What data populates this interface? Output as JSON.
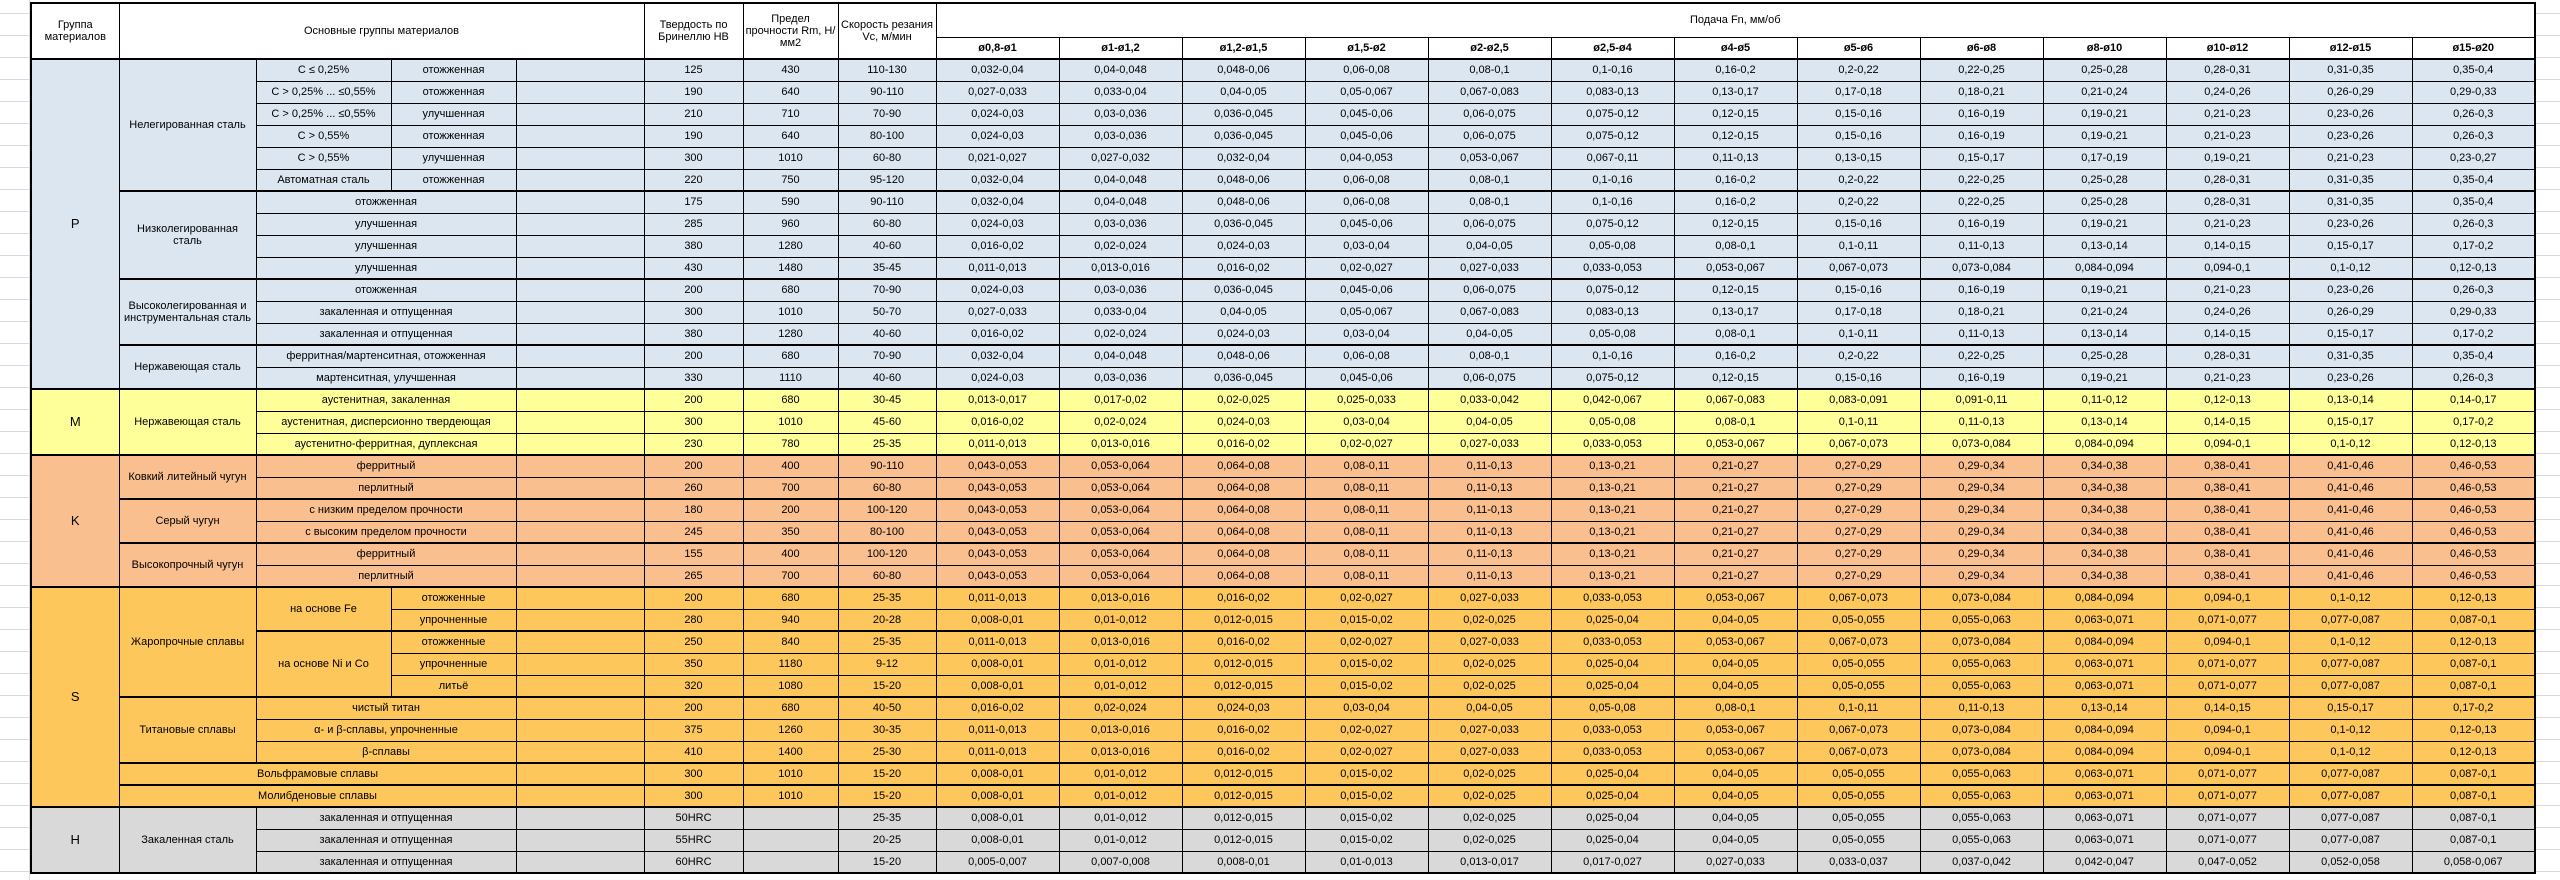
{
  "header": {
    "col_group": "Группа материалов",
    "col_main": "Основные группы материалов",
    "col_hardness": "Твердость по Бринеллю HB",
    "col_strength": "Предел прочности Rm, Н/мм2",
    "col_speed": "Скорость резания Vc, м/мин",
    "col_feed": "Подача Fn, мм/об",
    "diameters": [
      "ø0,8-ø1",
      "ø1-ø1,2",
      "ø1,2-ø1,5",
      "ø1,5-ø2",
      "ø2-ø2,5",
      "ø2,5-ø4",
      "ø4-ø5",
      "ø5-ø6",
      "ø6-ø8",
      "ø8-ø10",
      "ø10-ø12",
      "ø12-ø15",
      "ø15-ø20"
    ]
  },
  "colors": {
    "group_P": "#dce6f1",
    "group_M": "#ffff99",
    "group_K": "#fabf8f",
    "group_S": "#fdc75c",
    "group_H": "#d9d9d9",
    "grid_border": "#000000",
    "gutter_line": "#d6dbe3"
  },
  "table": {
    "feed_patterns": {
      "A": [
        "0,032-0,04",
        "0,04-0,048",
        "0,048-0,06",
        "0,06-0,08",
        "0,08-0,1",
        "0,1-0,16",
        "0,16-0,2",
        "0,2-0,22",
        "0,22-0,25",
        "0,25-0,28",
        "0,28-0,31",
        "0,31-0,35",
        "0,35-0,4"
      ],
      "B": [
        "0,027-0,033",
        "0,033-0,04",
        "0,04-0,05",
        "0,05-0,067",
        "0,067-0,083",
        "0,083-0,13",
        "0,13-0,17",
        "0,17-0,18",
        "0,18-0,21",
        "0,21-0,24",
        "0,24-0,26",
        "0,26-0,29",
        "0,29-0,33"
      ],
      "C": [
        "0,024-0,03",
        "0,03-0,036",
        "0,036-0,045",
        "0,045-0,06",
        "0,06-0,075",
        "0,075-0,12",
        "0,12-0,15",
        "0,15-0,16",
        "0,16-0,19",
        "0,19-0,21",
        "0,21-0,23",
        "0,23-0,26",
        "0,26-0,3"
      ],
      "D": [
        "0,021-0,027",
        "0,027-0,032",
        "0,032-0,04",
        "0,04-0,053",
        "0,053-0,067",
        "0,067-0,11",
        "0,11-0,13",
        "0,13-0,15",
        "0,15-0,17",
        "0,17-0,19",
        "0,19-0,21",
        "0,21-0,23",
        "0,23-0,27"
      ],
      "E": [
        "0,016-0,02",
        "0,02-0,024",
        "0,024-0,03",
        "0,03-0,04",
        "0,04-0,05",
        "0,05-0,08",
        "0,08-0,1",
        "0,1-0,11",
        "0,11-0,13",
        "0,13-0,14",
        "0,14-0,15",
        "0,15-0,17",
        "0,17-0,2"
      ],
      "F": [
        "0,011-0,013",
        "0,013-0,016",
        "0,016-0,02",
        "0,02-0,027",
        "0,027-0,033",
        "0,033-0,053",
        "0,053-0,067",
        "0,067-0,073",
        "0,073-0,084",
        "0,084-0,094",
        "0,094-0,1",
        "0,1-0,12",
        "0,12-0,13"
      ],
      "G": [
        "0,013-0,017",
        "0,017-0,02",
        "0,02-0,025",
        "0,025-0,033",
        "0,033-0,042",
        "0,042-0,067",
        "0,067-0,083",
        "0,083-0,091",
        "0,091-0,11",
        "0,11-0,12",
        "0,12-0,13",
        "0,13-0,14",
        "0,14-0,17"
      ],
      "H": [
        "0,043-0,053",
        "0,053-0,064",
        "0,064-0,08",
        "0,08-0,11",
        "0,11-0,13",
        "0,13-0,21",
        "0,21-0,27",
        "0,27-0,29",
        "0,29-0,34",
        "0,34-0,38",
        "0,38-0,41",
        "0,41-0,46",
        "0,46-0,53"
      ],
      "I": [
        "0,008-0,01",
        "0,01-0,012",
        "0,012-0,015",
        "0,015-0,02",
        "0,02-0,025",
        "0,025-0,04",
        "0,04-0,05",
        "0,05-0,055",
        "0,055-0,063",
        "0,063-0,071",
        "0,071-0,077",
        "0,077-0,087",
        "0,087-0,1"
      ],
      "J": [
        "0,005-0,007",
        "0,007-0,008",
        "0,008-0,01",
        "0,01-0,013",
        "0,013-0,017",
        "0,017-0,027",
        "0,027-0,033",
        "0,033-0,037",
        "0,037-0,042",
        "0,042-0,047",
        "0,047-0,052",
        "0,052-0,058",
        "0,058-0,067"
      ]
    },
    "rows": [
      {
        "grp": "P",
        "bs": true,
        "label": [
          {
            "k": "g",
            "t": "P",
            "rs": 15
          },
          {
            "k": "m",
            "t": "Нелегированная сталь",
            "rs": 6
          },
          {
            "k": "s",
            "t": "C ≤ 0,25%"
          },
          {
            "k": "c",
            "t": "отожженная"
          },
          {
            "k": "x"
          }
        ],
        "hb": "125",
        "rm": "430",
        "vc": "110-130",
        "feed": "A"
      },
      {
        "grp": "P",
        "label": [
          {
            "k": "s",
            "t": "C > 0,25% ... ≤0,55%"
          },
          {
            "k": "c",
            "t": "отожженная"
          },
          {
            "k": "x"
          }
        ],
        "hb": "190",
        "rm": "640",
        "vc": "90-110",
        "feed": "B"
      },
      {
        "grp": "P",
        "label": [
          {
            "k": "s",
            "t": "C > 0,25% ... ≤0,55%"
          },
          {
            "k": "c",
            "t": "улучшенная"
          },
          {
            "k": "x"
          }
        ],
        "hb": "210",
        "rm": "710",
        "vc": "70-90",
        "feed": "C"
      },
      {
        "grp": "P",
        "label": [
          {
            "k": "s",
            "t": "C > 0,55%"
          },
          {
            "k": "c",
            "t": "отожженная"
          },
          {
            "k": "x"
          }
        ],
        "hb": "190",
        "rm": "640",
        "vc": "80-100",
        "feed": "C"
      },
      {
        "grp": "P",
        "label": [
          {
            "k": "s",
            "t": "C > 0,55%"
          },
          {
            "k": "c",
            "t": "улучшенная"
          },
          {
            "k": "x"
          }
        ],
        "hb": "300",
        "rm": "1010",
        "vc": "60-80",
        "feed": "D"
      },
      {
        "grp": "P",
        "label": [
          {
            "k": "s",
            "t": "Автоматная сталь"
          },
          {
            "k": "c",
            "t": "отожженная"
          },
          {
            "k": "x"
          }
        ],
        "hb": "220",
        "rm": "750",
        "vc": "95-120",
        "feed": "A"
      },
      {
        "grp": "P",
        "bs": true,
        "label": [
          {
            "k": "m",
            "t": "Низколегированная сталь",
            "rs": 4
          },
          {
            "k": "c",
            "t": "отожженная",
            "cs": 2
          },
          {
            "k": "x"
          }
        ],
        "hb": "175",
        "rm": "590",
        "vc": "90-110",
        "feed": "A"
      },
      {
        "grp": "P",
        "label": [
          {
            "k": "c",
            "t": "улучшенная",
            "cs": 2
          },
          {
            "k": "x"
          }
        ],
        "hb": "285",
        "rm": "960",
        "vc": "60-80",
        "feed": "C"
      },
      {
        "grp": "P",
        "label": [
          {
            "k": "c",
            "t": "улучшенная",
            "cs": 2
          },
          {
            "k": "x"
          }
        ],
        "hb": "380",
        "rm": "1280",
        "vc": "40-60",
        "feed": "E"
      },
      {
        "grp": "P",
        "label": [
          {
            "k": "c",
            "t": "улучшенная",
            "cs": 2
          },
          {
            "k": "x"
          }
        ],
        "hb": "430",
        "rm": "1480",
        "vc": "35-45",
        "feed": "F"
      },
      {
        "grp": "P",
        "bs": true,
        "label": [
          {
            "k": "m",
            "t": "Высоколегированная и инструментальная сталь",
            "rs": 3
          },
          {
            "k": "c",
            "t": "отожженная",
            "cs": 2
          },
          {
            "k": "x"
          }
        ],
        "hb": "200",
        "rm": "680",
        "vc": "70-90",
        "feed": "C"
      },
      {
        "grp": "P",
        "label": [
          {
            "k": "c",
            "t": "закаленная и отпущенная",
            "cs": 2
          },
          {
            "k": "x"
          }
        ],
        "hb": "300",
        "rm": "1010",
        "vc": "50-70",
        "feed": "B"
      },
      {
        "grp": "P",
        "label": [
          {
            "k": "c",
            "t": "закаленная и отпущенная",
            "cs": 2
          },
          {
            "k": "x"
          }
        ],
        "hb": "380",
        "rm": "1280",
        "vc": "40-60",
        "feed": "E"
      },
      {
        "grp": "P",
        "bs": true,
        "label": [
          {
            "k": "m",
            "t": "Нержавеющая сталь",
            "rs": 2
          },
          {
            "k": "c",
            "t": "ферритная/мартенситная, отожженная",
            "cs": 2
          },
          {
            "k": "x"
          }
        ],
        "hb": "200",
        "rm": "680",
        "vc": "70-90",
        "feed": "A"
      },
      {
        "grp": "P",
        "label": [
          {
            "k": "c",
            "t": "мартенситная, улучшенная",
            "cs": 2
          },
          {
            "k": "x"
          }
        ],
        "hb": "330",
        "rm": "1110",
        "vc": "40-60",
        "feed": "C"
      },
      {
        "grp": "M",
        "bs": true,
        "label": [
          {
            "k": "g",
            "t": "M",
            "rs": 3
          },
          {
            "k": "m",
            "t": "Нержавеющая сталь",
            "rs": 3
          },
          {
            "k": "c",
            "t": "аустенитная, закаленная",
            "cs": 2
          },
          {
            "k": "x"
          }
        ],
        "hb": "200",
        "rm": "680",
        "vc": "30-45",
        "feed": "G"
      },
      {
        "grp": "M",
        "label": [
          {
            "k": "c",
            "t": "аустенитная, дисперсионно твердеющая",
            "cs": 2
          },
          {
            "k": "x"
          }
        ],
        "hb": "300",
        "rm": "1010",
        "vc": "45-60",
        "feed": "E"
      },
      {
        "grp": "M",
        "label": [
          {
            "k": "c",
            "t": "аустенитно-ферритная, дуплексная",
            "cs": 2
          },
          {
            "k": "x"
          }
        ],
        "hb": "230",
        "rm": "780",
        "vc": "25-35",
        "feed": "F"
      },
      {
        "grp": "K",
        "bs": true,
        "label": [
          {
            "k": "g",
            "t": "K",
            "rs": 6
          },
          {
            "k": "m",
            "t": "Ковкий литейный чугун",
            "rs": 2
          },
          {
            "k": "c",
            "t": "ферритный",
            "cs": 2
          },
          {
            "k": "x"
          }
        ],
        "hb": "200",
        "rm": "400",
        "vc": "90-110",
        "feed": "H"
      },
      {
        "grp": "K",
        "label": [
          {
            "k": "c",
            "t": "перлитный",
            "cs": 2
          },
          {
            "k": "x"
          }
        ],
        "hb": "260",
        "rm": "700",
        "vc": "60-80",
        "feed": "H"
      },
      {
        "grp": "K",
        "bs": true,
        "label": [
          {
            "k": "m",
            "t": "Серый чугун",
            "rs": 2
          },
          {
            "k": "c",
            "t": "с низким пределом прочности",
            "cs": 2
          },
          {
            "k": "x"
          }
        ],
        "hb": "180",
        "rm": "200",
        "vc": "100-120",
        "feed": "H"
      },
      {
        "grp": "K",
        "label": [
          {
            "k": "c",
            "t": "с высоким пределом прочности",
            "cs": 2
          },
          {
            "k": "x"
          }
        ],
        "hb": "245",
        "rm": "350",
        "vc": "80-100",
        "feed": "H"
      },
      {
        "grp": "K",
        "bs": true,
        "label": [
          {
            "k": "m",
            "t": "Высокопрочный чугун",
            "rs": 2
          },
          {
            "k": "c",
            "t": "ферритный",
            "cs": 2
          },
          {
            "k": "x"
          }
        ],
        "hb": "155",
        "rm": "400",
        "vc": "100-120",
        "feed": "H"
      },
      {
        "grp": "K",
        "label": [
          {
            "k": "c",
            "t": "перлитный",
            "cs": 2
          },
          {
            "k": "x"
          }
        ],
        "hb": "265",
        "rm": "700",
        "vc": "60-80",
        "feed": "H"
      },
      {
        "grp": "S",
        "bs": true,
        "label": [
          {
            "k": "g",
            "t": "S",
            "rs": 10
          },
          {
            "k": "m",
            "t": "Жаропрочные сплавы",
            "rs": 5
          },
          {
            "k": "s",
            "t": "на основе Fe",
            "rs": 2
          },
          {
            "k": "c",
            "t": "отожженные"
          },
          {
            "k": "x"
          }
        ],
        "hb": "200",
        "rm": "680",
        "vc": "25-35",
        "feed": "F"
      },
      {
        "grp": "S",
        "label": [
          {
            "k": "c",
            "t": "упрочненные"
          },
          {
            "k": "x"
          }
        ],
        "hb": "280",
        "rm": "940",
        "vc": "20-28",
        "feed": "I"
      },
      {
        "grp": "S",
        "bs": true,
        "label": [
          {
            "k": "s",
            "t": "на основе Ni и Co",
            "rs": 3
          },
          {
            "k": "c",
            "t": "отожженные"
          },
          {
            "k": "x"
          }
        ],
        "hb": "250",
        "rm": "840",
        "vc": "25-35",
        "feed": "F"
      },
      {
        "grp": "S",
        "label": [
          {
            "k": "c",
            "t": "упрочненные"
          },
          {
            "k": "x"
          }
        ],
        "hb": "350",
        "rm": "1180",
        "vc": "9-12",
        "feed": "I"
      },
      {
        "grp": "S",
        "label": [
          {
            "k": "c",
            "t": "литьё"
          },
          {
            "k": "x"
          }
        ],
        "hb": "320",
        "rm": "1080",
        "vc": "15-20",
        "feed": "I"
      },
      {
        "grp": "S",
        "bs": true,
        "label": [
          {
            "k": "m",
            "t": "Титановые сплавы",
            "rs": 3
          },
          {
            "k": "c",
            "t": "чистый титан",
            "cs": 2
          },
          {
            "k": "x"
          }
        ],
        "hb": "200",
        "rm": "680",
        "vc": "40-50",
        "feed": "E"
      },
      {
        "grp": "S",
        "label": [
          {
            "k": "c",
            "t": "α- и β-сплавы, упрочненные",
            "cs": 2
          },
          {
            "k": "x"
          }
        ],
        "hb": "375",
        "rm": "1260",
        "vc": "30-35",
        "feed": "F"
      },
      {
        "grp": "S",
        "label": [
          {
            "k": "c",
            "t": "β-сплавы",
            "cs": 2
          },
          {
            "k": "x"
          }
        ],
        "hb": "410",
        "rm": "1400",
        "vc": "25-30",
        "feed": "F"
      },
      {
        "grp": "S",
        "bs": true,
        "label": [
          {
            "k": "m",
            "t": "Вольфрамовые сплавы",
            "cs": 3
          },
          {
            "k": "x"
          }
        ],
        "hb": "300",
        "rm": "1010",
        "vc": "15-20",
        "feed": "I"
      },
      {
        "grp": "S",
        "bs": true,
        "label": [
          {
            "k": "m",
            "t": "Молибденовые сплавы",
            "cs": 3
          },
          {
            "k": "x"
          }
        ],
        "hb": "300",
        "rm": "1010",
        "vc": "15-20",
        "feed": "I"
      },
      {
        "grp": "H",
        "bs": true,
        "label": [
          {
            "k": "g",
            "t": "H",
            "rs": 3
          },
          {
            "k": "m",
            "t": "Закаленная сталь",
            "rs": 3
          },
          {
            "k": "c",
            "t": "закаленная и отпущенная",
            "cs": 2
          },
          {
            "k": "x"
          }
        ],
        "hb": "50HRC",
        "rm": "",
        "vc": "25-35",
        "feed": "I"
      },
      {
        "grp": "H",
        "label": [
          {
            "k": "c",
            "t": "закаленная и отпущенная",
            "cs": 2
          },
          {
            "k": "x"
          }
        ],
        "hb": "55HRC",
        "rm": "",
        "vc": "20-25",
        "feed": "I"
      },
      {
        "grp": "H",
        "label": [
          {
            "k": "c",
            "t": "закаленная и отпущенная",
            "cs": 2
          },
          {
            "k": "x"
          }
        ],
        "hb": "60HRC",
        "rm": "",
        "vc": "15-20",
        "feed": "J"
      }
    ]
  }
}
